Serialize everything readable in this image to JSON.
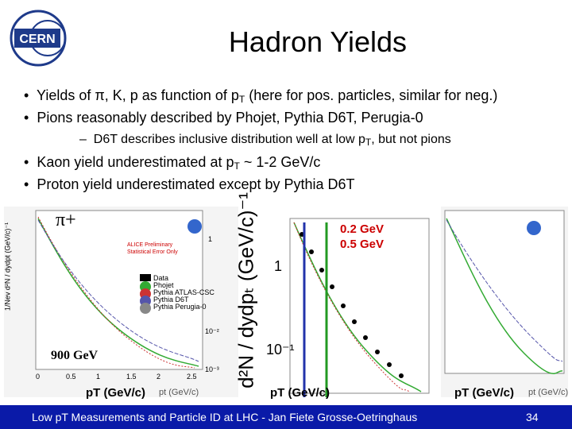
{
  "header": {
    "logo": "CERN",
    "title": "Hadron Yields"
  },
  "bullets": [
    {
      "parts": [
        "Yields of π, K, p as function of p",
        "T",
        " (here for pos. particles, similar for neg.)"
      ]
    },
    {
      "parts": [
        "Pions reasonably described by Phojet, Pythia D6T, Perugia-0"
      ]
    },
    {
      "parts": [
        "D6T describes inclusive distribution well at low p",
        "T",
        ", but not pions"
      ]
    },
    {
      "parts": [
        "Kaon yield underestimated at p",
        "T",
        " ~ 1-2 GeV/c"
      ]
    },
    {
      "parts": [
        "Proton yield underestimated except by Pythia D6T"
      ]
    }
  ],
  "plots": {
    "particle": "π+",
    "energy": "900 GeV",
    "cut_low": "0.2 GeV",
    "cut_high": "0.5 GeV",
    "y_label_small": "1/Nev d²N / dydpt (GeV/c)⁻¹",
    "y_label_big": "d²N / dydpₜ (GeV/c)⁻¹",
    "x_label": "pT (GeV/c)",
    "x_label_small": "pt (GeV/c)",
    "preliminary": "ALICE Preliminary",
    "stat_note": "Statistical Error Only",
    "legend": [
      "Data",
      "Phojet",
      "Pythia ATLAS-CSC",
      "Pythia D6T",
      "Pythia Perugia-0"
    ],
    "y_ticks_big": [
      "1",
      "10⁻¹"
    ],
    "y_ticks_small": [
      "1",
      "10⁻²",
      "10⁻³"
    ],
    "x_ticks": [
      "0",
      "0.5",
      "1",
      "1.5",
      "2",
      "2.5"
    ]
  },
  "footer": {
    "text": "Low pT Measurements and Particle ID at LHC - Jan Fiete Grosse-Oetringhaus",
    "page": "34"
  }
}
